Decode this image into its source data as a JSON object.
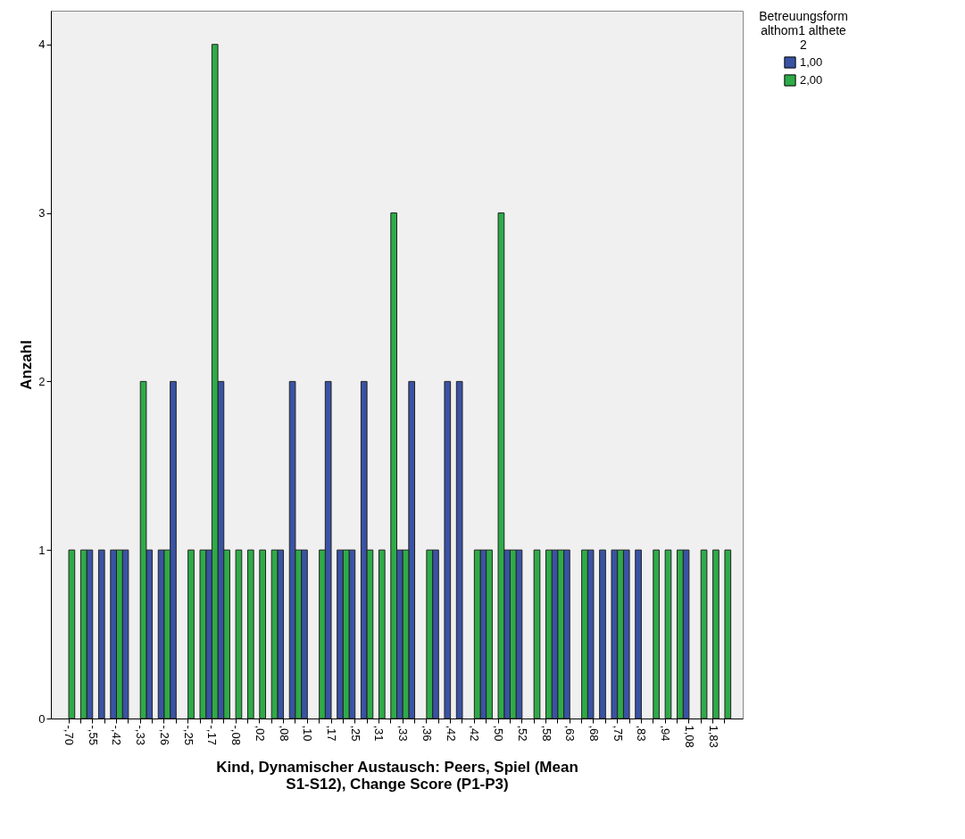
{
  "chart_data": {
    "type": "bar",
    "xlabel": "Kind, Dynamischer Austausch: Peers, Spiel (Mean S1-S12), Change Score (P1-P3)",
    "ylabel": "Anzahl",
    "legend_title": "Betreuungsform althom1 althete 2",
    "legend": "top right",
    "categories": [
      "-,70",
      null,
      "-,55",
      null,
      "-,42",
      null,
      "-,33",
      null,
      "-,26",
      null,
      "-,25",
      null,
      "-,17",
      null,
      "-,08",
      null,
      ",02",
      null,
      ",08",
      null,
      ",10",
      null,
      ",17",
      null,
      ",25",
      null,
      ",31",
      null,
      ",33",
      null,
      ",36",
      null,
      ",42",
      null,
      ",42",
      null,
      ",50",
      null,
      ",52",
      null,
      ",58",
      null,
      ",63",
      null,
      ",68",
      null,
      ",75",
      null,
      ",83",
      null,
      ",94",
      null,
      "1,08",
      null,
      "1,83",
      null
    ],
    "series": [
      {
        "name": "1,00",
        "color": "#3953a4",
        "values": [
          0,
          0,
          1,
          1,
          1,
          1,
          0,
          1,
          1,
          2,
          0,
          0,
          1,
          2,
          0,
          0,
          0,
          0,
          1,
          2,
          1,
          0,
          2,
          1,
          1,
          2,
          0,
          0,
          1,
          2,
          0,
          1,
          2,
          2,
          0,
          1,
          0,
          1,
          1,
          0,
          0,
          1,
          1,
          0,
          1,
          1,
          1,
          1,
          1,
          0,
          0,
          0,
          1,
          0,
          0,
          0
        ]
      },
      {
        "name": "2,00",
        "color": "#2eab48",
        "values": [
          1,
          1,
          0,
          0,
          1,
          0,
          2,
          0,
          1,
          0,
          1,
          1,
          4,
          1,
          1,
          1,
          1,
          1,
          0,
          1,
          0,
          1,
          0,
          1,
          0,
          1,
          1,
          3,
          1,
          0,
          1,
          0,
          0,
          0,
          1,
          1,
          3,
          1,
          0,
          1,
          1,
          1,
          0,
          1,
          0,
          0,
          1,
          0,
          0,
          1,
          1,
          1,
          0,
          1,
          1,
          1
        ]
      }
    ],
    "ylim": [
      0,
      4.2
    ],
    "yticks": [
      0,
      1,
      2,
      3,
      4
    ]
  }
}
